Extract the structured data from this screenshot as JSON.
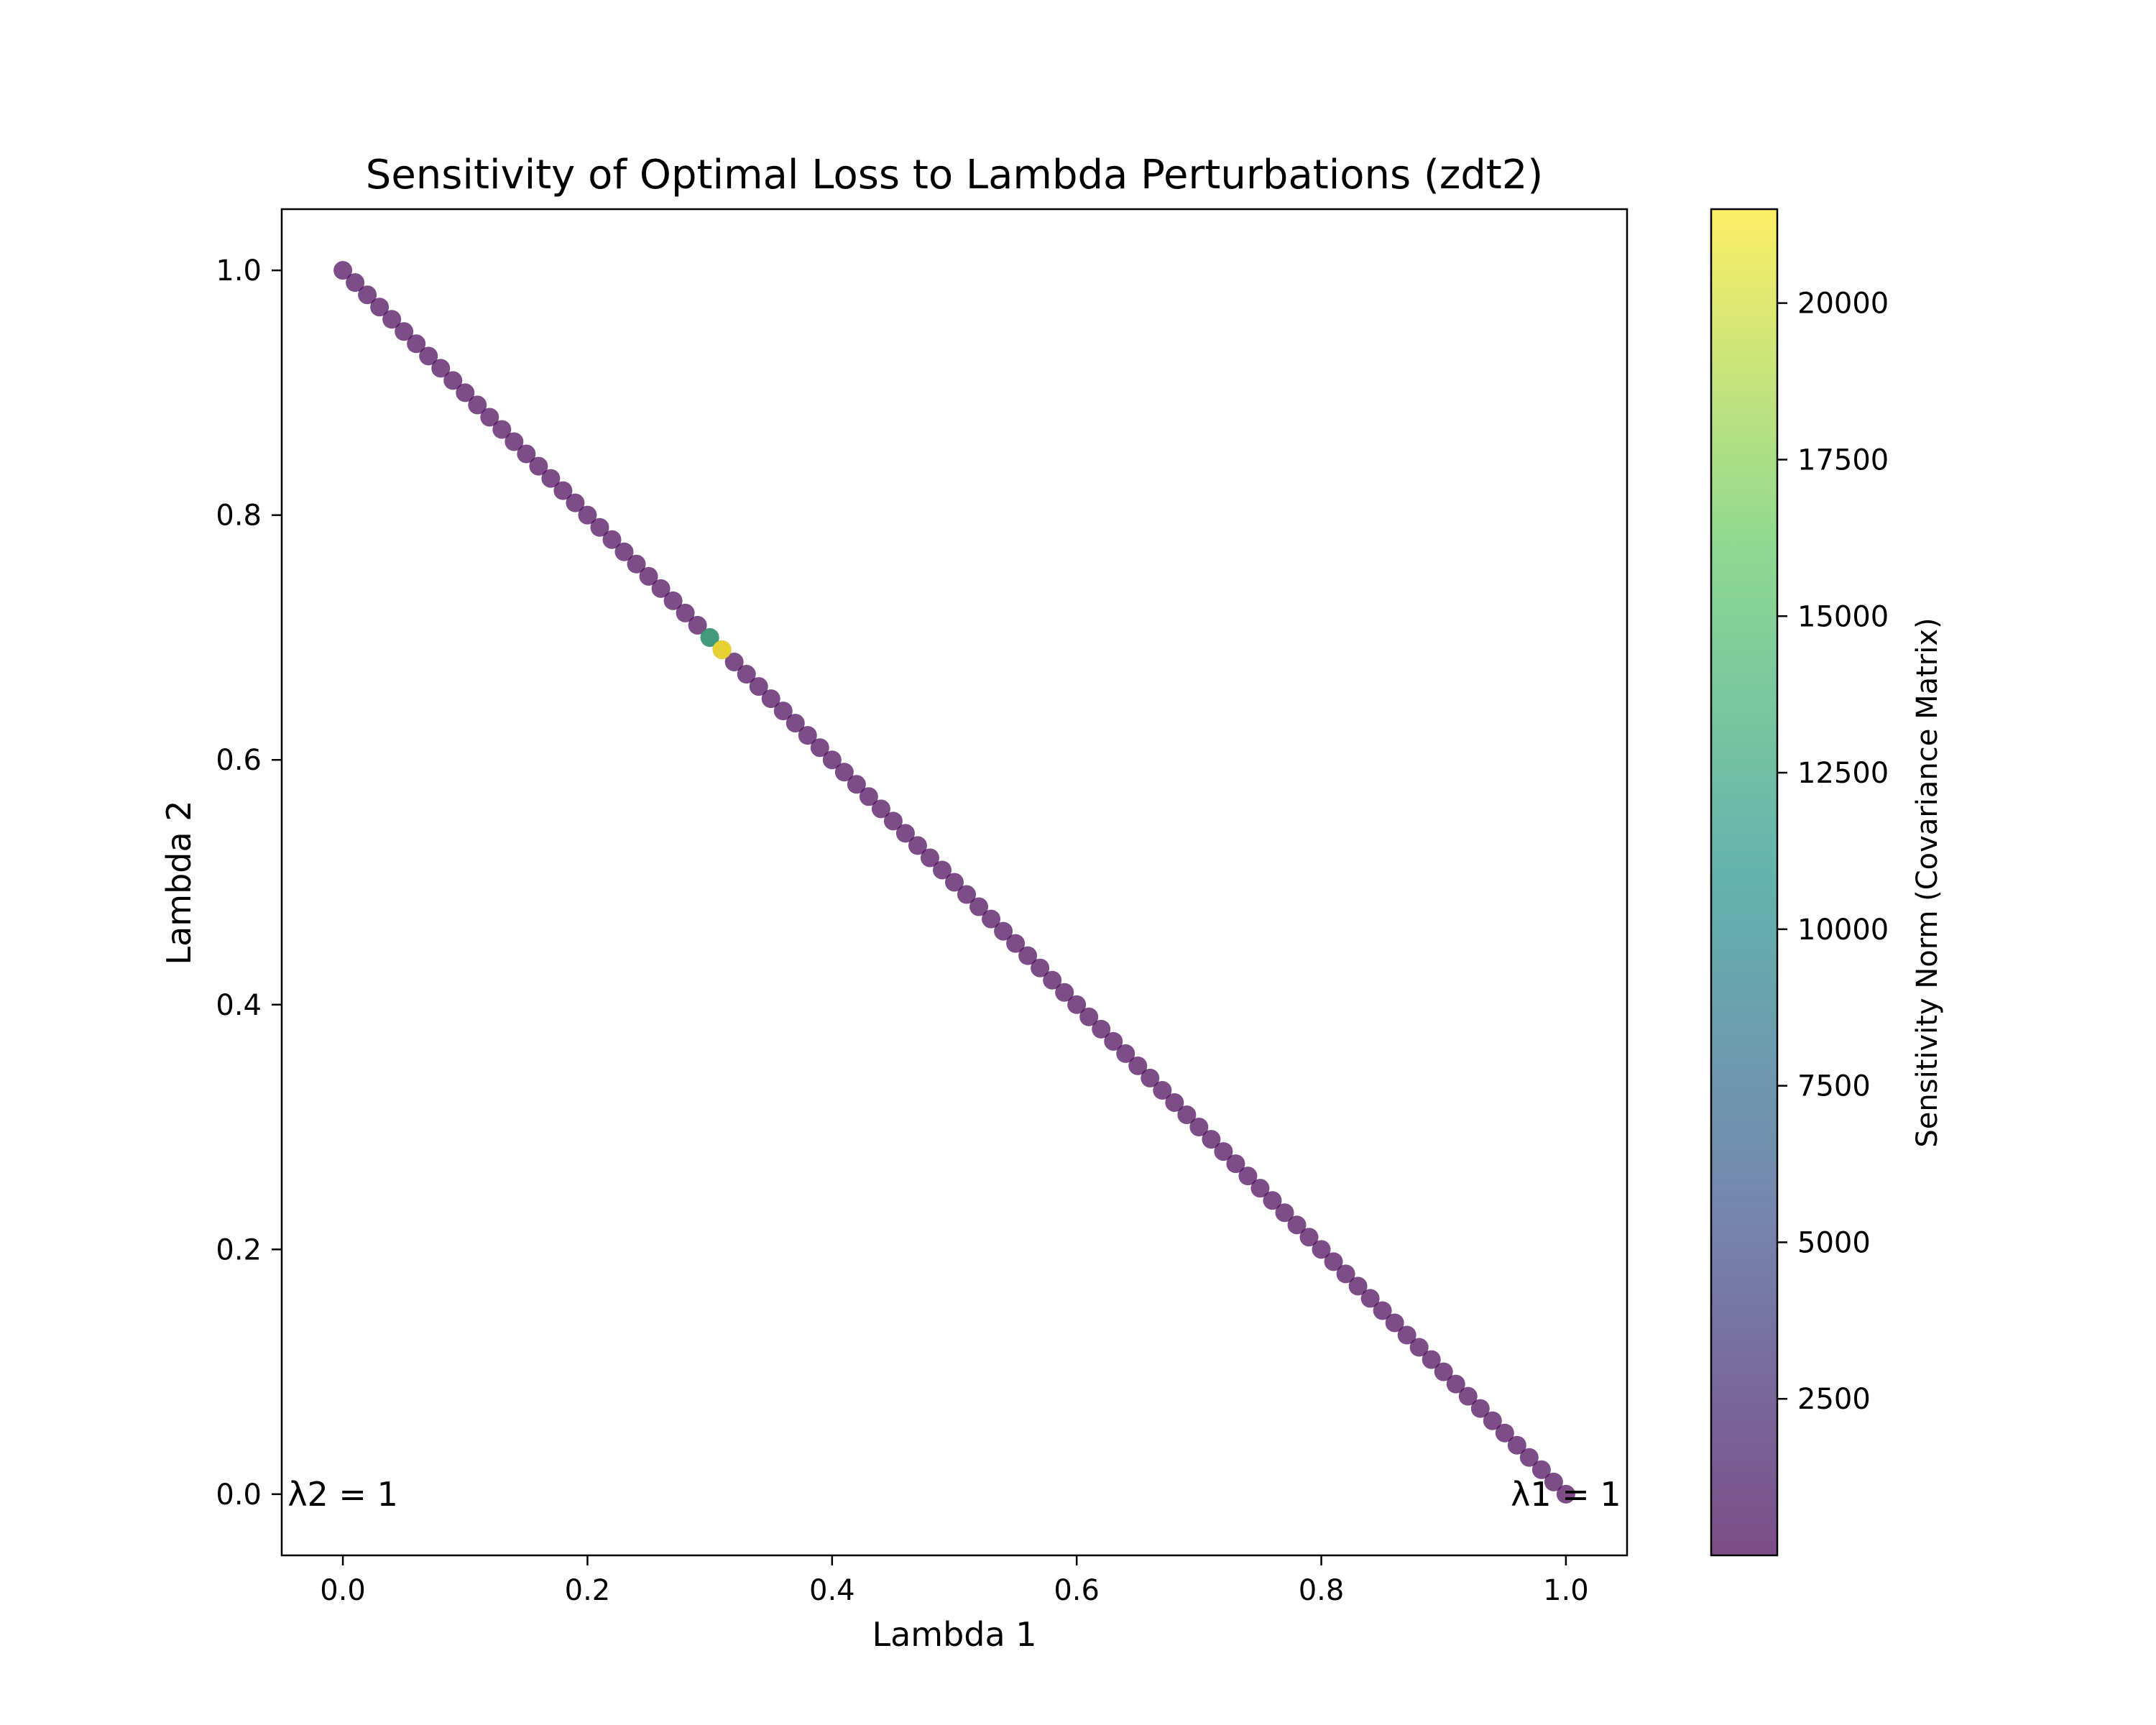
{
  "chart_data": {
    "type": "scatter",
    "title": "Sensitivity of Optimal Loss to Lambda Perturbations (zdt2)",
    "xlabel": "Lambda 1",
    "ylabel": "Lambda 2",
    "xlim": [
      -0.05,
      1.05
    ],
    "ylim": [
      -0.05,
      1.05
    ],
    "xticks": [
      "0.0",
      "0.2",
      "0.4",
      "0.6",
      "0.8",
      "1.0"
    ],
    "yticks": [
      "0.0",
      "0.2",
      "0.4",
      "0.6",
      "0.8",
      "1.0"
    ],
    "grid": false,
    "series": [
      {
        "points": {
          "lambda1_from": 0.0,
          "lambda1_to": 1.0,
          "count": 101,
          "relation": "lambda2 = 1 - lambda1",
          "sensitivity_baseline": 0
        },
        "sensitivity_spikes": [
          {
            "lambda1": 0.3,
            "lambda2": 0.7,
            "sensitivity": 13000
          },
          {
            "lambda1": 0.31,
            "lambda2": 0.69,
            "sensitivity": 21500
          }
        ]
      }
    ],
    "colormap": "viridis",
    "point_alpha": 0.7,
    "colorbar": {
      "label": "Sensitivity Norm (Covariance Matrix)",
      "range": [
        0,
        21500
      ],
      "ticks": [
        "2500",
        "5000",
        "7500",
        "10000",
        "12500",
        "15000",
        "17500",
        "20000"
      ]
    },
    "annotations": [
      {
        "text": "λ2 = 1",
        "lambda1": 0.0,
        "lambda2": 0.0,
        "anchor": "left"
      },
      {
        "text": "λ1 = 1",
        "lambda1": 1.0,
        "lambda2": 0.0,
        "anchor": "right"
      }
    ]
  }
}
